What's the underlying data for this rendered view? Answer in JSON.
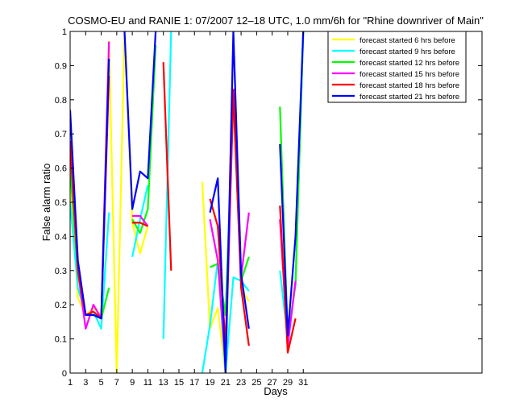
{
  "chart_data": {
    "type": "line",
    "title": "COSMO-EU and RANIE 1: 07/2007 12–18 UTC, 1.0 mm/6h for \"Rhine downriver of Main\"",
    "xlabel": "Days",
    "ylabel": "False alarm ratio",
    "xlim": [
      1,
      54
    ],
    "ylim": [
      0,
      1
    ],
    "x_ticks": [
      1,
      3,
      5,
      7,
      9,
      11,
      13,
      15,
      17,
      19,
      21,
      23,
      25,
      27,
      29,
      31
    ],
    "y_ticks": [
      0,
      0.1,
      0.2,
      0.3,
      0.4,
      0.5,
      0.6,
      0.7,
      0.8,
      0.9,
      1
    ],
    "y_tick_labels": [
      "0",
      "0.1",
      "0.2",
      "0.3",
      "0.4",
      "0.5",
      "0.6",
      "0.7",
      "0.8",
      "0.9",
      "1"
    ],
    "grid": false,
    "legend_position": "top-right",
    "x": [
      1,
      2,
      3,
      4,
      5,
      6,
      7,
      8,
      9,
      10,
      11,
      12,
      13,
      14,
      15,
      16,
      17,
      18,
      19,
      20,
      21,
      22,
      23,
      24,
      25,
      26,
      27,
      28,
      29,
      30,
      31
    ],
    "series": [
      {
        "name": "forecast started 6 hrs before",
        "color": "#ffff00",
        "values": [
          0.6,
          0.22,
          0.17,
          0.19,
          0.17,
          0.97,
          0.0,
          1.0,
          0.44,
          0.35,
          0.43,
          null,
          null,
          null,
          null,
          null,
          null,
          0.56,
          0.13,
          0.19,
          0.0,
          1.0,
          0.25,
          0.21,
          null,
          null,
          null,
          null,
          null,
          null,
          null
        ]
      },
      {
        "name": "forecast started 9 hrs before",
        "color": "#00ffff",
        "values": [
          0.5,
          0.25,
          0.17,
          0.18,
          0.13,
          0.47,
          null,
          null,
          0.34,
          0.45,
          0.55,
          null,
          0.1,
          1.0,
          null,
          null,
          null,
          0.0,
          0.14,
          0.33,
          0.0,
          0.28,
          0.27,
          0.24,
          null,
          null,
          null,
          0.3,
          0.1,
          0.26,
          1.0
        ]
      },
      {
        "name": "forecast started 12 hrs before",
        "color": "#00ff00",
        "values": [
          0.6,
          0.29,
          0.17,
          0.17,
          0.16,
          0.25,
          null,
          null,
          0.45,
          0.41,
          0.48,
          0.96,
          null,
          null,
          null,
          null,
          null,
          null,
          0.31,
          0.32,
          0.17,
          0.8,
          0.27,
          0.34,
          null,
          null,
          null,
          0.78,
          0.1,
          0.26,
          1.0
        ]
      },
      {
        "name": "forecast started 15 hrs before",
        "color": "#ff00ff",
        "values": [
          0.67,
          0.3,
          0.13,
          0.2,
          0.16,
          0.97,
          null,
          null,
          0.46,
          0.46,
          0.43,
          null,
          null,
          null,
          null,
          null,
          null,
          null,
          0.45,
          0.33,
          0.02,
          0.82,
          0.28,
          0.47,
          null,
          null,
          null,
          0.45,
          0.08,
          0.27,
          null
        ]
      },
      {
        "name": "forecast started 18 hrs before",
        "color": "#ff0000",
        "values": [
          0.68,
          0.3,
          0.17,
          0.18,
          0.16,
          0.87,
          null,
          null,
          0.44,
          0.44,
          0.43,
          null,
          0.91,
          0.3,
          null,
          null,
          null,
          null,
          0.51,
          0.43,
          0.08,
          0.83,
          0.25,
          0.08,
          null,
          null,
          null,
          0.49,
          0.06,
          0.16,
          null
        ]
      },
      {
        "name": "forecast started 21 hrs before",
        "color": "#0000ff",
        "values": [
          0.77,
          0.33,
          0.17,
          0.17,
          0.16,
          0.92,
          null,
          1.0,
          0.48,
          0.59,
          0.57,
          1.0,
          null,
          null,
          null,
          null,
          null,
          null,
          0.47,
          0.57,
          0.0,
          1.0,
          0.29,
          0.13,
          null,
          null,
          null,
          0.67,
          0.11,
          0.4,
          1.0
        ]
      }
    ]
  }
}
